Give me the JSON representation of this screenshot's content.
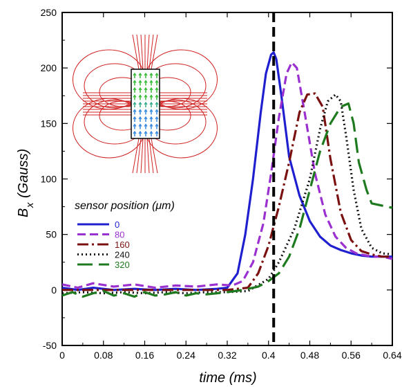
{
  "chart_data": {
    "type": "line",
    "xlabel": "time (ms)",
    "ylabel_main": "B",
    "ylabel_sub": "x",
    "ylabel_unit": "(Gauss)",
    "xlim": [
      0,
      0.64
    ],
    "ylim": [
      -50,
      250
    ],
    "x_ticks": [
      0,
      0.08,
      0.16,
      0.24,
      0.32,
      0.4,
      0.48,
      0.56,
      0.64
    ],
    "x_tick_labels": [
      "0",
      "0.08",
      "0.16",
      "0.24",
      "0.32",
      "0.4",
      "0.48",
      "0.56",
      "0.64"
    ],
    "y_ticks": [
      -50,
      0,
      50,
      100,
      150,
      200,
      250
    ],
    "y_tick_labels": [
      "-50",
      "0",
      "50",
      "100",
      "150",
      "200",
      "250"
    ],
    "legend_title": "sensor position (μm)",
    "marker_line_x": 0.41,
    "series": [
      {
        "name": "0",
        "color": "#1f1fd0",
        "dash": "solid",
        "x": [
          0,
          0.03,
          0.06,
          0.1,
          0.14,
          0.18,
          0.22,
          0.26,
          0.3,
          0.32,
          0.34,
          0.355,
          0.37,
          0.385,
          0.395,
          0.405,
          0.41,
          0.415,
          0.425,
          0.44,
          0.46,
          0.48,
          0.5,
          0.52,
          0.54,
          0.56,
          0.58,
          0.6,
          0.62,
          0.64
        ],
        "y": [
          2,
          0,
          2,
          0,
          1,
          0,
          1,
          0,
          1,
          2,
          15,
          50,
          100,
          160,
          195,
          212,
          214,
          208,
          175,
          120,
          85,
          62,
          48,
          40,
          36,
          33,
          31,
          30,
          30,
          30
        ]
      },
      {
        "name": "80",
        "color": "#9b30d0",
        "dash": "dashed",
        "x": [
          0,
          0.03,
          0.06,
          0.1,
          0.14,
          0.18,
          0.22,
          0.26,
          0.3,
          0.33,
          0.35,
          0.37,
          0.39,
          0.405,
          0.42,
          0.435,
          0.445,
          0.455,
          0.47,
          0.49,
          0.51,
          0.53,
          0.55,
          0.57,
          0.6,
          0.62,
          0.64
        ],
        "y": [
          5,
          2,
          6,
          3,
          5,
          2,
          4,
          3,
          5,
          4,
          8,
          25,
          60,
          105,
          155,
          195,
          205,
          200,
          160,
          105,
          68,
          48,
          38,
          33,
          30,
          30,
          28
        ]
      },
      {
        "name": "160",
        "color": "#7a1010",
        "dash": "dashdot",
        "x": [
          0,
          0.04,
          0.08,
          0.12,
          0.16,
          0.2,
          0.24,
          0.28,
          0.32,
          0.36,
          0.38,
          0.4,
          0.42,
          0.44,
          0.46,
          0.475,
          0.49,
          0.505,
          0.52,
          0.54,
          0.56,
          0.58,
          0.6,
          0.62,
          0.64
        ],
        "y": [
          0,
          0,
          0,
          0,
          0,
          0,
          0,
          0,
          0,
          2,
          15,
          40,
          75,
          115,
          160,
          176,
          177,
          165,
          118,
          70,
          45,
          35,
          32,
          30,
          30
        ]
      },
      {
        "name": "240",
        "color": "#111111",
        "dash": "dotted",
        "x": [
          0,
          0.04,
          0.08,
          0.12,
          0.16,
          0.2,
          0.24,
          0.28,
          0.32,
          0.36,
          0.4,
          0.42,
          0.45,
          0.48,
          0.5,
          0.515,
          0.53,
          0.54,
          0.55,
          0.565,
          0.58,
          0.6,
          0.62,
          0.64
        ],
        "y": [
          -3,
          -2,
          -3,
          -2,
          -3,
          -2,
          -3,
          -2,
          -2,
          -1,
          10,
          25,
          55,
          100,
          145,
          170,
          176,
          170,
          140,
          90,
          55,
          38,
          33,
          32
        ]
      },
      {
        "name": "320",
        "color": "#1e7a1e",
        "dash": "longdash",
        "x": [
          0,
          0.02,
          0.04,
          0.06,
          0.08,
          0.1,
          0.12,
          0.14,
          0.16,
          0.18,
          0.2,
          0.22,
          0.24,
          0.26,
          0.28,
          0.3,
          0.32,
          0.35,
          0.38,
          0.4,
          0.42,
          0.44,
          0.46,
          0.48,
          0.5,
          0.52,
          0.54,
          0.555,
          0.565,
          0.575,
          0.59,
          0.6,
          0.62,
          0.64
        ],
        "y": [
          -5,
          -2,
          -6,
          -3,
          -1,
          -5,
          -3,
          -6,
          -2,
          -5,
          -4,
          -2,
          -5,
          -3,
          -4,
          -3,
          -2,
          0,
          3,
          8,
          15,
          30,
          55,
          90,
          125,
          150,
          165,
          168,
          150,
          115,
          90,
          78,
          76,
          74
        ]
      }
    ]
  }
}
